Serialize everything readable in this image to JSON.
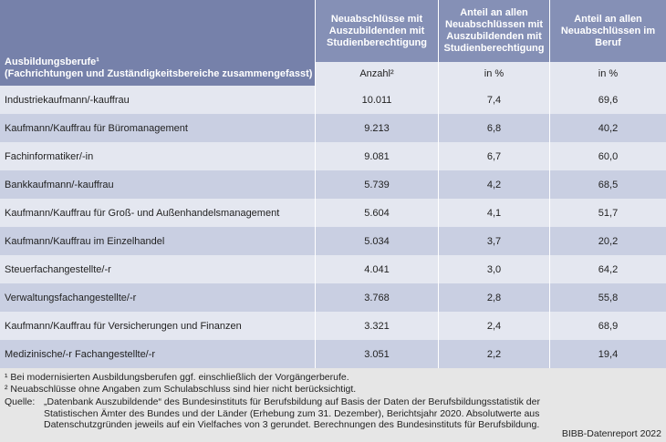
{
  "table": {
    "header": [
      [
        "Ausbildungsberufe¹",
        "(Fachrichtungen und Zuständigkeitsbereiche zusammengefasst)"
      ],
      [
        "Neuabschlüsse mit",
        "Auszubildenden mit",
        "Studienberechtigung"
      ],
      [
        "Anteil an allen",
        "Neuabschlüssen mit",
        "Auszubildenden mit",
        "Studienberechtigung"
      ],
      [
        "Anteil an allen",
        "Neuabschlüssen im",
        "Beruf"
      ]
    ],
    "units": [
      "Anzahl²",
      "in %",
      "in %"
    ],
    "rows": [
      [
        "Industriekaufmann/-kauffrau",
        "10.011",
        "7,4",
        "69,6"
      ],
      [
        "Kaufmann/Kauffrau für Büromanagement",
        "9.213",
        "6,8",
        "40,2"
      ],
      [
        "Fachinformatiker/-in",
        "9.081",
        "6,7",
        "60,0"
      ],
      [
        "Bankkaufmann/-kauffrau",
        "5.739",
        "4,2",
        "68,5"
      ],
      [
        "Kaufmann/Kauffrau für Groß- und Außenhandelsmanagement",
        "5.604",
        "4,1",
        "51,7"
      ],
      [
        "Kaufmann/Kauffrau im Einzelhandel",
        "5.034",
        "3,7",
        "20,2"
      ],
      [
        "Steuerfachangestellte/-r",
        "4.041",
        "3,0",
        "64,2"
      ],
      [
        "Verwaltungsfachangestellte/-r",
        "3.768",
        "2,8",
        "55,8"
      ],
      [
        "Kaufmann/Kauffrau für Versicherungen und Finanzen",
        "3.321",
        "2,4",
        "68,9"
      ],
      [
        "Medizinische/-r Fachangestellte/-r",
        "3.051",
        "2,2",
        "19,4"
      ]
    ]
  },
  "footnotes": [
    "¹ Bei modernisierten Ausbildungsberufen ggf. einschließlich der Vorgängerberufe.",
    "² Neuabschlüsse ohne Angaben zum Schulabschluss sind hier nicht berücksichtigt."
  ],
  "source": {
    "label": "Quelle:",
    "lines": [
      "„Datenbank Auszubildende“ des Bundesinstituts für Berufsbildung auf Basis der Daten der Berufsbildungsstatistik der",
      "Statistischen Ämter des Bundes und der Länder (Erhebung zum 31. Dezember), Berichtsjahr 2020. Absolutwerte aus",
      "Datenschutzgründen jeweils auf ein Vielfaches von 3 gerundet. Berechnungen des Bundesinstituts für Berufsbildung."
    ]
  },
  "credit": "BIBB-Datenreport 2022"
}
